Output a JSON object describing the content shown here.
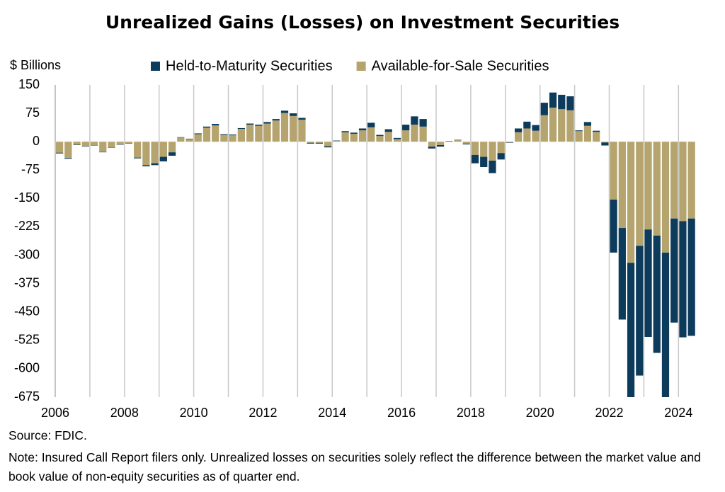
{
  "chart_data": {
    "type": "stacked-bar",
    "title": "Unrealized Gains (Losses) on Investment Securities",
    "y_label": "$ Billions",
    "source": "Source: FDIC.",
    "note": "Note: Insured Call Report filers only. Unrealized losses on securities solely reflect the difference between the market value and book value of non-equity securities as of quarter end.",
    "x": [
      2006,
      2006.25,
      2006.5,
      2006.75,
      2007,
      2007.25,
      2007.5,
      2007.75,
      2008,
      2008.25,
      2008.5,
      2008.75,
      2009,
      2009.25,
      2009.5,
      2009.75,
      2010,
      2010.25,
      2010.5,
      2010.75,
      2011,
      2011.25,
      2011.5,
      2011.75,
      2012,
      2012.25,
      2012.5,
      2012.75,
      2013,
      2013.25,
      2013.5,
      2013.75,
      2014,
      2014.25,
      2014.5,
      2014.75,
      2015,
      2015.25,
      2015.5,
      2015.75,
      2016,
      2016.25,
      2016.5,
      2016.75,
      2017,
      2017.25,
      2017.5,
      2017.75,
      2018,
      2018.25,
      2018.5,
      2018.75,
      2019,
      2019.25,
      2019.5,
      2019.75,
      2020,
      2020.25,
      2020.5,
      2020.75,
      2021,
      2021.25,
      2021.5,
      2021.75,
      2022,
      2022.25,
      2022.5,
      2022.75,
      2023,
      2023.25,
      2023.5,
      2023.75,
      2024,
      2024.25
    ],
    "series": [
      {
        "name": "Available-for-Sale Securities",
        "color": "#b5a46e",
        "values": [
          -29,
          -43,
          -8,
          -12,
          -9,
          -27,
          -15,
          -7,
          -4,
          -42,
          -62,
          -57,
          -40,
          -28,
          11,
          7,
          20,
          37,
          43,
          18,
          17,
          34,
          45,
          42,
          48,
          56,
          76,
          68,
          58,
          -3,
          -3,
          -12,
          2,
          25,
          21,
          30,
          38,
          15,
          26,
          7,
          30,
          45,
          40,
          -13,
          -9,
          1,
          4,
          -5,
          -35,
          -40,
          -50,
          -30,
          -2,
          25,
          35,
          29,
          70,
          90,
          86,
          83,
          28,
          42,
          26,
          -2,
          -153,
          -228,
          -320,
          -275,
          -232,
          -248,
          -293,
          -203,
          -210,
          -203
        ]
      },
      {
        "name": "Held-to-Maturity Securities",
        "color": "#0d3b5c",
        "values": [
          -2,
          -2,
          -1,
          -1,
          -1,
          -1,
          -1,
          -1,
          -1,
          -2,
          -3,
          -5,
          -12,
          -9,
          1,
          1,
          2,
          3,
          4,
          2,
          2,
          2,
          3,
          3,
          4,
          4,
          6,
          7,
          5,
          -2,
          -2,
          -3,
          1,
          3,
          3,
          5,
          12,
          3,
          7,
          3,
          15,
          22,
          20,
          -5,
          -4,
          1,
          1,
          -2,
          -22,
          -27,
          -33,
          -17,
          -1,
          10,
          18,
          15,
          33,
          40,
          38,
          37,
          2,
          10,
          3,
          -8,
          -140,
          -242,
          -370,
          -343,
          -284,
          -310,
          -391,
          -275,
          -307,
          -310
        ]
      }
    ],
    "legend_order": [
      1,
      0
    ],
    "xlim": [
      2006,
      2024.75
    ],
    "xticks": [
      2006,
      2008,
      2010,
      2012,
      2014,
      2016,
      2018,
      2020,
      2022,
      2024
    ],
    "xgrid": [
      2007,
      2008,
      2009,
      2010,
      2011,
      2012,
      2013,
      2014,
      2015,
      2016,
      2017,
      2018,
      2019,
      2020,
      2021,
      2022,
      2023,
      2024
    ],
    "ylim": [
      -675,
      150
    ],
    "yticks": [
      150,
      75,
      0,
      -75,
      -150,
      -225,
      -300,
      -375,
      -450,
      -525,
      -600,
      -675
    ]
  }
}
